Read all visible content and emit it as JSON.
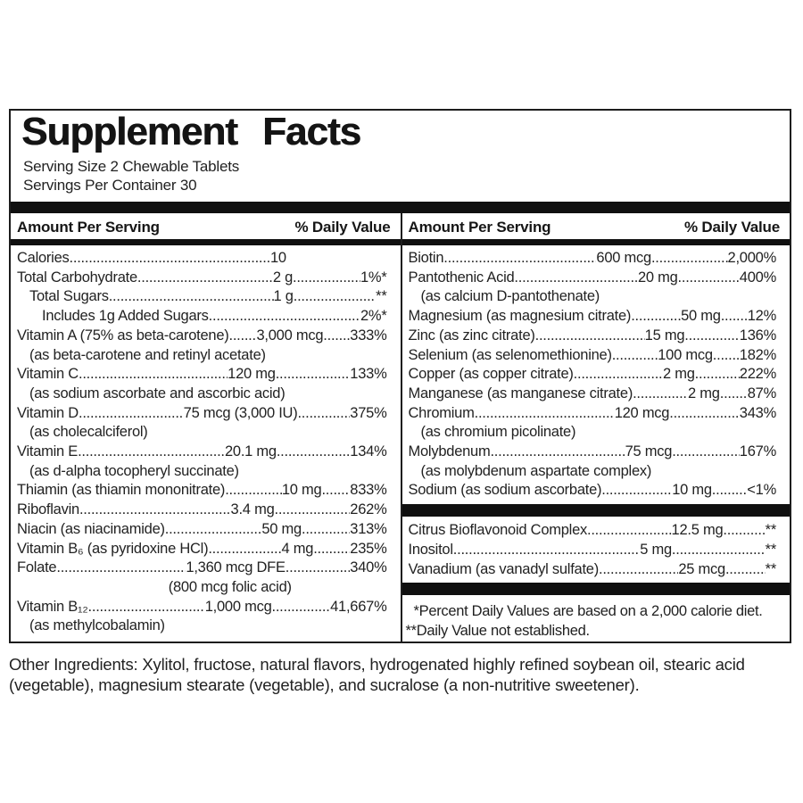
{
  "title": "Supplement Facts",
  "serving_size": "Serving Size 2 Chewable Tablets",
  "servings_per_container": "Servings Per Container 30",
  "column_headers": {
    "amount": "Amount Per Serving",
    "dv": "% Daily Value"
  },
  "left_rows": [
    {
      "name": "Calories",
      "amount": "10",
      "dv": ""
    },
    {
      "name": "Total Carbohydrate",
      "amount": "2 g",
      "dv": "1%*"
    },
    {
      "name": "Total Sugars",
      "amount": "1 g",
      "dv": "**",
      "indent": 1
    },
    {
      "name": "Includes 1g Added Sugars",
      "amount": "",
      "dv": "2%*",
      "indent": 2
    },
    {
      "name": "Vitamin A (75% as beta-carotene)",
      "amount": "3,000 mcg",
      "dv": "333%",
      "sub": "(as beta-carotene and retinyl acetate)"
    },
    {
      "name": "Vitamin C",
      "amount": "120 mg",
      "dv": "133%",
      "sub": "(as sodium ascorbate and ascorbic acid)"
    },
    {
      "name": "Vitamin D",
      "amount": "75 mcg (3,000 IU)",
      "dv": "375%",
      "sub": "(as cholecalciferol)"
    },
    {
      "name": "Vitamin E",
      "amount": "20.1 mg",
      "dv": "134%",
      "sub": "(as d-alpha tocopheryl succinate)"
    },
    {
      "name": "Thiamin (as thiamin mononitrate)",
      "amount": "10 mg",
      "dv": "833%"
    },
    {
      "name": "Riboflavin",
      "amount": "3.4 mg",
      "dv": "262%"
    },
    {
      "name": "Niacin (as niacinamide)",
      "amount": "50 mg",
      "dv": "313%"
    },
    {
      "name": "Vitamin B₆ (as pyridoxine HCl)",
      "amount": "4 mg",
      "dv": "235%"
    },
    {
      "name": "Folate",
      "amount": "1,360 mcg DFE",
      "dv": "340%",
      "sub": "(800 mcg folic acid)",
      "sub_align": "center"
    },
    {
      "name": "Vitamin B₁₂",
      "amount": "1,000 mcg",
      "dv": "41,667%",
      "sub": "(as methylcobalamin)"
    }
  ],
  "right_rows": [
    {
      "name": "Biotin",
      "amount": "600 mcg",
      "dv": "2,000%"
    },
    {
      "name": "Pantothenic Acid",
      "amount": "20 mg",
      "dv": "400%",
      "sub": "(as calcium D-pantothenate)"
    },
    {
      "name": "Magnesium (as magnesium citrate)",
      "amount": "50 mg",
      "dv": "12%"
    },
    {
      "name": "Zinc (as zinc citrate)",
      "amount": "15 mg",
      "dv": "136%"
    },
    {
      "name": "Selenium (as selenomethionine)",
      "amount": "100 mcg",
      "dv": "182%"
    },
    {
      "name": "Copper (as copper citrate)",
      "amount": "2 mg",
      "dv": "222%"
    },
    {
      "name": "Manganese (as manganese citrate)",
      "amount": "2 mg",
      "dv": "87%"
    },
    {
      "name": "Chromium",
      "amount": "120 mcg",
      "dv": "343%",
      "sub": "(as chromium picolinate)"
    },
    {
      "name": "Molybdenum",
      "amount": "75 mcg",
      "dv": "167%",
      "sub": "(as molybdenum aspartate complex)"
    },
    {
      "name": "Sodium (as sodium ascorbate)",
      "amount": "10 mg",
      "dv": "<1%"
    },
    {
      "type": "bar"
    },
    {
      "name": "Citrus Bioflavonoid Complex",
      "amount": "12.5 mg",
      "dv": "**"
    },
    {
      "name": "Inositol",
      "amount": "5 mg",
      "dv": "**"
    },
    {
      "name": "Vanadium (as vanadyl sulfate)",
      "amount": "25 mcg",
      "dv": "**"
    },
    {
      "type": "bar"
    }
  ],
  "footnotes": [
    "*Percent Daily Values are based on a 2,000 calorie diet.",
    "**Daily Value not established."
  ],
  "other_ingredients": "Other Ingredients: Xylitol, fructose, natural flavors, hydrogenated highly refined soybean oil, stearic acid (vegetable), magnesium stearate (vegetable), and sucralose (a non-nutritive sweetener).",
  "colors": {
    "text": "#1e1e1e",
    "bar": "#101010",
    "border": "#1c1c1c",
    "background": "#ffffff"
  }
}
